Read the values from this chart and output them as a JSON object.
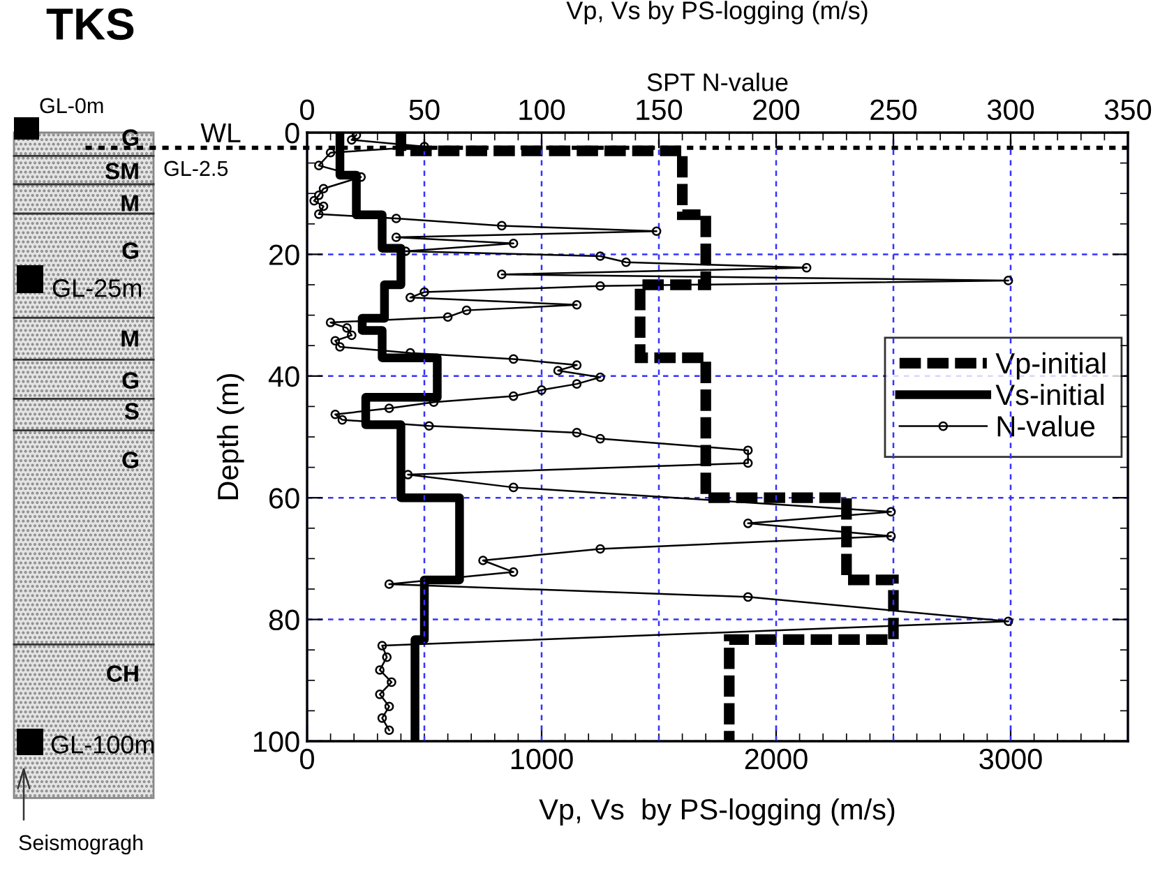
{
  "chart_data": {
    "type": "line",
    "title": "TKS",
    "subtitle": "Vp, Vs by PS-logging (m/s)",
    "xlabel": "Vp, Vs  by PS-logging (m/s)",
    "x2label": "SPT N-value",
    "ylabel": "Depth (m)",
    "xlim": [
      0,
      3500
    ],
    "xticks": [
      0,
      1000,
      2000,
      3000
    ],
    "x2lim": [
      0,
      350
    ],
    "x2ticks": [
      0,
      50,
      100,
      150,
      200,
      250,
      300,
      350
    ],
    "ylim": [
      100,
      0
    ],
    "yticks": [
      0,
      20,
      40,
      60,
      80,
      100
    ],
    "grid": true,
    "legend": "right",
    "ref_lines": [
      {
        "axis": "y",
        "value": 2.5,
        "label": "WL",
        "color": "#000000",
        "line_style": "dotted"
      }
    ],
    "annotations": [
      "GL-0m",
      "GL-2.5",
      "GL-25m",
      "GL-100m",
      "Seismogragh",
      "G",
      "SM",
      "M",
      "G",
      "M",
      "G",
      "S",
      "G",
      "CH"
    ],
    "series": [
      {
        "name": "Vp-initial",
        "color": "#000000",
        "line_style": "dashed",
        "marker": "none",
        "x": [
          400,
          400,
          1600,
          1600,
          1700,
          1700,
          1420,
          1420,
          1700,
          1700,
          2300,
          2300,
          2500,
          2500,
          1800,
          1800
        ],
        "values": [
          0,
          3,
          3,
          13.5,
          13.5,
          25,
          25,
          37,
          37,
          60,
          60,
          73.5,
          73.5,
          83.3,
          83.3,
          100
        ]
      },
      {
        "name": "Vs-initial",
        "color": "#000000",
        "line_style": "solid",
        "marker": "none",
        "x": [
          140,
          140,
          210,
          210,
          320,
          320,
          400,
          400,
          330,
          330,
          235,
          235,
          320,
          320,
          555,
          555,
          250,
          250,
          400,
          400,
          650,
          650,
          500,
          500,
          460,
          460
        ],
        "values": [
          0,
          7,
          7,
          13.5,
          13.5,
          19,
          19,
          25,
          25,
          30.5,
          30.5,
          32.5,
          32.5,
          37,
          37,
          43.5,
          43.5,
          48,
          48,
          60,
          60,
          73.5,
          73.5,
          83.3,
          83.3,
          100
        ]
      },
      {
        "name": "N-value",
        "color": "#000000",
        "line_style": "solid",
        "marker": "circle",
        "axis": "x2",
        "x": [
          21,
          19,
          50,
          10,
          5,
          23,
          7,
          5,
          3,
          7,
          5,
          38,
          83,
          149,
          38,
          88,
          42,
          125,
          136,
          213,
          83,
          299,
          125,
          50,
          44,
          115,
          68,
          60,
          10,
          17,
          19,
          12,
          14,
          44,
          88,
          115,
          107,
          125,
          115,
          100,
          88,
          54,
          35,
          12,
          15,
          52,
          115,
          125,
          188,
          188,
          43,
          88,
          249,
          188,
          249,
          125,
          75,
          88,
          35,
          188,
          299,
          32,
          34,
          31,
          36,
          31,
          35,
          32,
          35
        ],
        "values": [
          0.4,
          1.2,
          2.3,
          3.3,
          5.4,
          7.3,
          9.2,
          10.3,
          11.2,
          12.1,
          13.4,
          14.1,
          15.3,
          16.2,
          17.2,
          18.2,
          19.5,
          20.3,
          21.3,
          22.2,
          23.3,
          24.3,
          25.2,
          26.2,
          27.1,
          28.3,
          29.2,
          30.3,
          31.2,
          32.1,
          33.3,
          34.2,
          35.2,
          36.2,
          37.2,
          38.2,
          39.1,
          40.2,
          41.3,
          42.3,
          43.3,
          44.3,
          45.3,
          46.3,
          47.2,
          48.2,
          49.3,
          50.3,
          52.2,
          54.3,
          56.2,
          58.3,
          62.3,
          64.2,
          66.3,
          68.4,
          70.3,
          72.2,
          74.2,
          76.3,
          80.3,
          84.3,
          86.2,
          88.3,
          90.3,
          92.3,
          94.3,
          96.2,
          98.2
        ]
      }
    ]
  }
}
